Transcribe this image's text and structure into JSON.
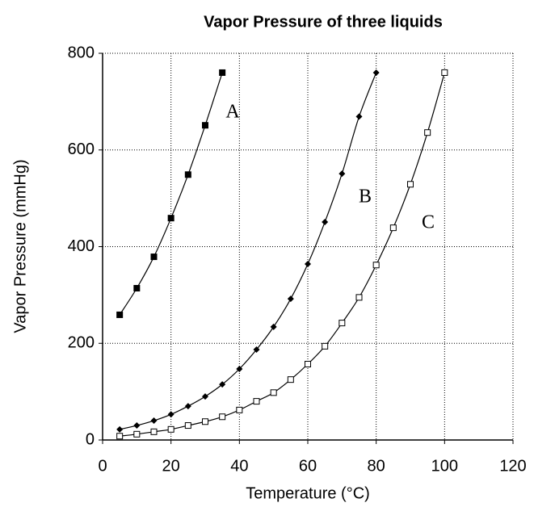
{
  "chart_data": {
    "type": "line",
    "title": "Vapor Pressure of three liquids",
    "x_label": "Temperature (°C)",
    "y_label": "Vapor Pressure (mmHg)",
    "xlim": [
      0,
      120
    ],
    "xticks": [
      0,
      20,
      40,
      60,
      80,
      100,
      120
    ],
    "ylim": [
      0,
      800
    ],
    "yticks": [
      0,
      200,
      400,
      600,
      800
    ],
    "grid": true,
    "series": [
      {
        "name": "A",
        "color": "#000000",
        "marker": "square",
        "x": [
          5,
          10,
          15,
          20,
          25,
          30,
          35
        ],
        "values": [
          259,
          314,
          379,
          459,
          549,
          651,
          760
        ]
      },
      {
        "name": "B",
        "color": "#000000",
        "marker": "diamond",
        "x": [
          5,
          10,
          15,
          20,
          25,
          30,
          35,
          40,
          45,
          50,
          55,
          60,
          65,
          70,
          75,
          80
        ],
        "values": [
          22,
          30,
          40,
          53,
          70,
          90,
          115,
          147,
          187,
          234,
          292,
          364,
          451,
          551,
          669,
          760
        ]
      },
      {
        "name": "C",
        "color": "#000000",
        "marker": "open-square",
        "x": [
          5,
          10,
          15,
          20,
          25,
          30,
          35,
          40,
          45,
          50,
          55,
          60,
          65,
          70,
          75,
          80,
          85,
          90,
          95,
          100
        ],
        "values": [
          8,
          12,
          17,
          22,
          30,
          38,
          48,
          62,
          80,
          98,
          125,
          157,
          194,
          242,
          295,
          362,
          439,
          529,
          636,
          760
        ]
      }
    ]
  }
}
